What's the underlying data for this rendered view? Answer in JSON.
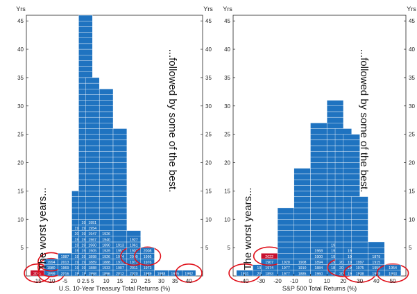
{
  "chart_data": [
    {
      "type": "histogram",
      "xlabel": "U.S. 10-Year Treasury Total Returns (%)",
      "ylabel": "Yrs",
      "ylim": [
        0,
        46
      ],
      "yticks": [
        5,
        10,
        15,
        20,
        25,
        30,
        35,
        40,
        45
      ],
      "xticks": [
        -15,
        -10,
        -5,
        0,
        2.5,
        5,
        10,
        15,
        20,
        25,
        30,
        35,
        40
      ],
      "xtick_labels": [
        "-15",
        "-10",
        "-5",
        "0",
        "2.5",
        "5",
        "10",
        "15",
        "20",
        "25",
        "30",
        "35",
        "40"
      ],
      "bins": [
        {
          "x_center": -15,
          "years": [
            "2022"
          ],
          "highlight": [
            "2022"
          ]
        },
        {
          "x_center": -10,
          "years": [
            "1999",
            "1980",
            "1994"
          ],
          "highlight": [
            "1994",
            "1980",
            "1999"
          ]
        },
        {
          "x_center": -5,
          "years": [
            "2016",
            "1969",
            "2013",
            "1987"
          ]
        },
        {
          "x_center": 0,
          "years": [
            "1931",
            "1958",
            "1956",
            "1941",
            "1967",
            "1978",
            "1978",
            "2021",
            "1978"
          ],
          "count": 15
        },
        {
          "x_center": 2.5,
          "years": [
            "1911",
            "1966",
            "1916",
            "1936",
            "1966",
            "1909",
            "1943",
            "1941",
            "1935",
            "1900"
          ],
          "count": 46
        },
        {
          "x_center": 5,
          "years": [
            "1958",
            "1888",
            "1889",
            "1898",
            "1905",
            "1960",
            "1967",
            "1947",
            "1954",
            "1951"
          ],
          "count": 35
        },
        {
          "x_center": 10,
          "years": [
            "1896",
            "1933",
            "1888",
            "1926",
            "1939",
            "1890",
            "1940",
            "1926"
          ],
          "count": 33
        },
        {
          "x_center": 15,
          "years": [
            "2012",
            "1907",
            "1913",
            "1974",
            "1957",
            "1913"
          ],
          "count": 26
        },
        {
          "x_center": 20,
          "years": [
            "2020",
            "2011",
            "1971",
            "2000",
            "1907",
            "1961",
            "1927"
          ],
          "count": 8,
          "highlight": [
            "2000"
          ]
        },
        {
          "x_center": 25,
          "years": [
            "1989",
            "1973",
            "1976",
            "1995",
            "2008"
          ],
          "count": 5,
          "highlight": [
            "1995"
          ]
        },
        {
          "x_center": 30,
          "years": [
            "1988"
          ],
          "count": 1
        },
        {
          "x_center": 35,
          "years": [
            "1985"
          ],
          "count": 1
        },
        {
          "x_center": 40,
          "years": [
            "1982"
          ],
          "count": 1,
          "highlight": [
            "1982"
          ]
        }
      ],
      "annotations": [
        "The worst years...",
        "...followed by some of the best."
      ]
    },
    {
      "type": "histogram",
      "xlabel": "S&P 500 Total Returns (%)",
      "ylabel": "Yrs",
      "ylim": [
        0,
        46
      ],
      "yticks": [
        5,
        10,
        15,
        20,
        25,
        30,
        35,
        40,
        45
      ],
      "xticks": [
        -40,
        -30,
        -20,
        -10,
        0,
        10,
        20,
        30,
        40,
        50
      ],
      "xtick_labels": [
        "-40",
        "-30",
        "-20",
        "-10",
        "0",
        "10",
        "20",
        "30",
        "40",
        "50"
      ],
      "bins": [
        {
          "x_center": -40,
          "years": [
            "1931"
          ],
          "highlight": [
            "1931"
          ]
        },
        {
          "x_center": -30,
          "years": [
            "2008",
            "1937"
          ]
        },
        {
          "x_center": -25,
          "years": [
            "1893",
            "1974",
            "1907",
            "2022"
          ],
          "highlight": [
            "2022"
          ]
        },
        {
          "x_center": -15,
          "years": [
            "1977",
            "1977",
            "1920"
          ],
          "count": 12
        },
        {
          "x_center": -5,
          "years": [
            "1885",
            "1910",
            "1908"
          ],
          "count": 19
        },
        {
          "x_center": 5,
          "years": [
            "1960",
            "1884",
            "1894",
            "1900",
            "1968"
          ],
          "count": 27
        },
        {
          "x_center": 15,
          "years": [
            "1993",
            "1899",
            "1950",
            "1907",
            "1904",
            "1917"
          ],
          "count": 31
        },
        {
          "x_center": 20,
          "years": [
            "2006",
            "2009",
            "2020"
          ],
          "count": 26,
          "highlight": [
            "2009"
          ]
        },
        {
          "x_center": 25,
          "years": [
            "1919",
            "1963",
            "1943",
            "1962",
            "1916"
          ],
          "count": 25
        },
        {
          "x_center": 30,
          "years": [
            "1938",
            "1975",
            "1997"
          ],
          "count": 14,
          "highlight": [
            "1938"
          ]
        },
        {
          "x_center": 40,
          "years": [
            "1928",
            "1958",
            "1915",
            "1879"
          ],
          "count": 6
        },
        {
          "x_center": 50,
          "years": [
            "1933",
            "1954"
          ],
          "count": 2,
          "highlight": [
            "1933"
          ]
        }
      ],
      "annotations": [
        "The worst years...",
        "...followed by some of the best."
      ]
    }
  ],
  "colors": {
    "bar": "#1f73c0",
    "bar_edge": "#ffffff",
    "highlight_cell": "#c8102e",
    "highlight_ring": "#e0101a",
    "axis": "#222222"
  }
}
